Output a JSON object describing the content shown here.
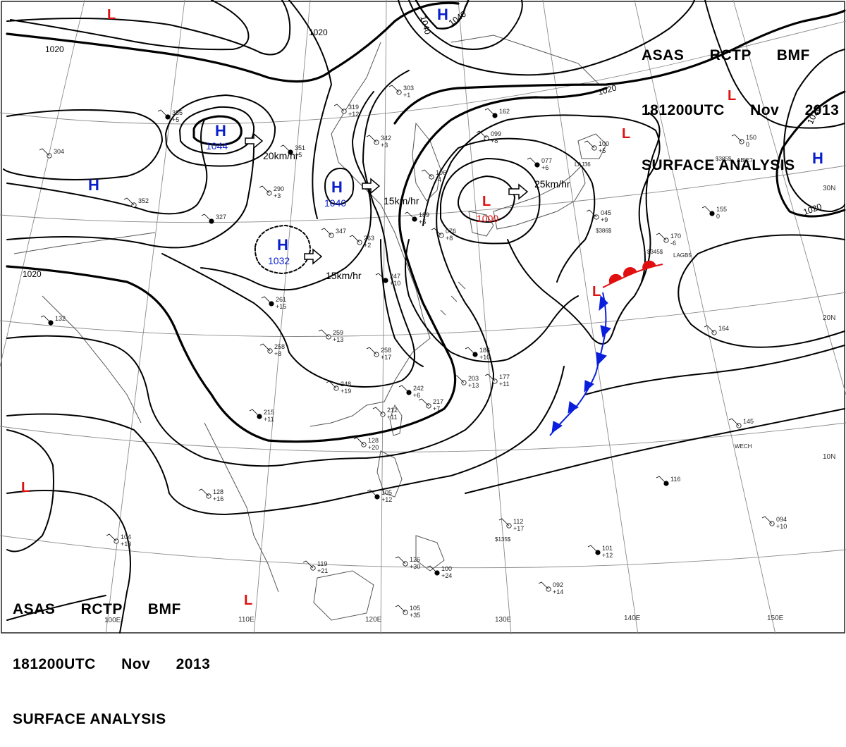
{
  "title": {
    "line1": "ASAS RCTP BMF",
    "line2": "181200UTC Nov 2013",
    "line3": "SURFACE ANALYSIS"
  },
  "colors": {
    "high": "#0a1fcc",
    "low": "#e01010",
    "cold_front": "#0a1fdd",
    "warm_front": "#e01010",
    "isobar": "#000000",
    "grid": "#808080",
    "coast": "#555555"
  },
  "pressure_centers": [
    {
      "type": "H",
      "label": "H",
      "value": "1044"
    },
    {
      "type": "H",
      "label": "H",
      "value": "1040"
    },
    {
      "type": "H",
      "label": "H",
      "value": "1032"
    },
    {
      "type": "H",
      "label": "H",
      "value": ""
    },
    {
      "type": "H",
      "label": "H",
      "value": ""
    },
    {
      "type": "H",
      "label": "H",
      "value": ""
    },
    {
      "type": "L",
      "label": "L",
      "value": "1000"
    },
    {
      "type": "L",
      "label": "L",
      "value": ""
    },
    {
      "type": "L",
      "label": "L",
      "value": ""
    },
    {
      "type": "L",
      "label": "L",
      "value": ""
    },
    {
      "type": "L",
      "label": "L",
      "value": ""
    },
    {
      "type": "L",
      "label": "L",
      "value": ""
    },
    {
      "type": "L",
      "label": "L",
      "value": ""
    }
  ],
  "isobar_labels": [
    "1020",
    "1020",
    "1040",
    "1040",
    "1020",
    "1020",
    "1020",
    "1020"
  ],
  "movements": [
    "20km/hr",
    "15km/hr",
    "15km/hr",
    "25km/hr"
  ],
  "longitude_labels": [
    "100E",
    "110E",
    "120E",
    "130E",
    "140E",
    "150E"
  ],
  "latitude_labels": [
    "30N",
    "20N",
    "10N"
  ],
  "stations": [
    {
      "top": "385",
      "bottom": "+5"
    },
    {
      "top": "304",
      "bottom": ""
    },
    {
      "top": "319",
      "bottom": "+12"
    },
    {
      "top": "351",
      "bottom": "+5"
    },
    {
      "top": "290",
      "bottom": "+3"
    },
    {
      "top": "352",
      "bottom": ""
    },
    {
      "top": "327",
      "bottom": ""
    },
    {
      "top": "347",
      "bottom": ""
    },
    {
      "top": "263",
      "bottom": "+2"
    },
    {
      "top": "162",
      "bottom": ""
    },
    {
      "top": "099",
      "bottom": "+8"
    },
    {
      "top": "106",
      "bottom": "-4"
    },
    {
      "top": "077",
      "bottom": "+6"
    },
    {
      "top": "100",
      "bottom": "+5"
    },
    {
      "top": "150",
      "bottom": "0"
    },
    {
      "top": "155",
      "bottom": "0"
    },
    {
      "top": "045",
      "bottom": "+9"
    },
    {
      "top": "170",
      "bottom": "-6"
    },
    {
      "top": "261",
      "bottom": "+15"
    },
    {
      "top": "259",
      "bottom": "+13"
    },
    {
      "top": "258",
      "bottom": "+8"
    },
    {
      "top": "247",
      "bottom": "+10"
    },
    {
      "top": "258",
      "bottom": "+17"
    },
    {
      "top": "248",
      "bottom": "+19"
    },
    {
      "top": "186",
      "bottom": "+10"
    },
    {
      "top": "177",
      "bottom": "+11"
    },
    {
      "top": "203",
      "bottom": "+13"
    },
    {
      "top": "242",
      "bottom": "+6"
    },
    {
      "top": "217",
      "bottom": "+7"
    },
    {
      "top": "212",
      "bottom": "+11"
    },
    {
      "top": "215",
      "bottom": "+11"
    },
    {
      "top": "164",
      "bottom": ""
    },
    {
      "top": "145",
      "bottom": ""
    },
    {
      "top": "116",
      "bottom": ""
    },
    {
      "top": "128",
      "bottom": "+16"
    },
    {
      "top": "104",
      "bottom": "+13"
    },
    {
      "top": "105",
      "bottom": "+12"
    },
    {
      "top": "119",
      "bottom": "+21"
    },
    {
      "top": "112",
      "bottom": "+17"
    },
    {
      "top": "101",
      "bottom": "+12"
    },
    {
      "top": "094",
      "bottom": "+10"
    },
    {
      "top": "092",
      "bottom": "+14"
    },
    {
      "top": "100",
      "bottom": "+24"
    },
    {
      "top": "126",
      "bottom": "+30"
    },
    {
      "top": "105",
      "bottom": "+35"
    },
    {
      "top": "132",
      "bottom": ""
    },
    {
      "top": "303",
      "bottom": "+1"
    },
    {
      "top": "342",
      "bottom": "+3"
    },
    {
      "top": "189",
      "bottom": "+5"
    },
    {
      "top": "076",
      "bottom": "+8"
    },
    {
      "top": "128",
      "bottom": "+20"
    }
  ],
  "ship_ids": [
    "$385$",
    "$345$",
    "LAGB5",
    "ABIE7",
    "LAJ36",
    "$135$",
    "WECH",
    "$386$"
  ]
}
